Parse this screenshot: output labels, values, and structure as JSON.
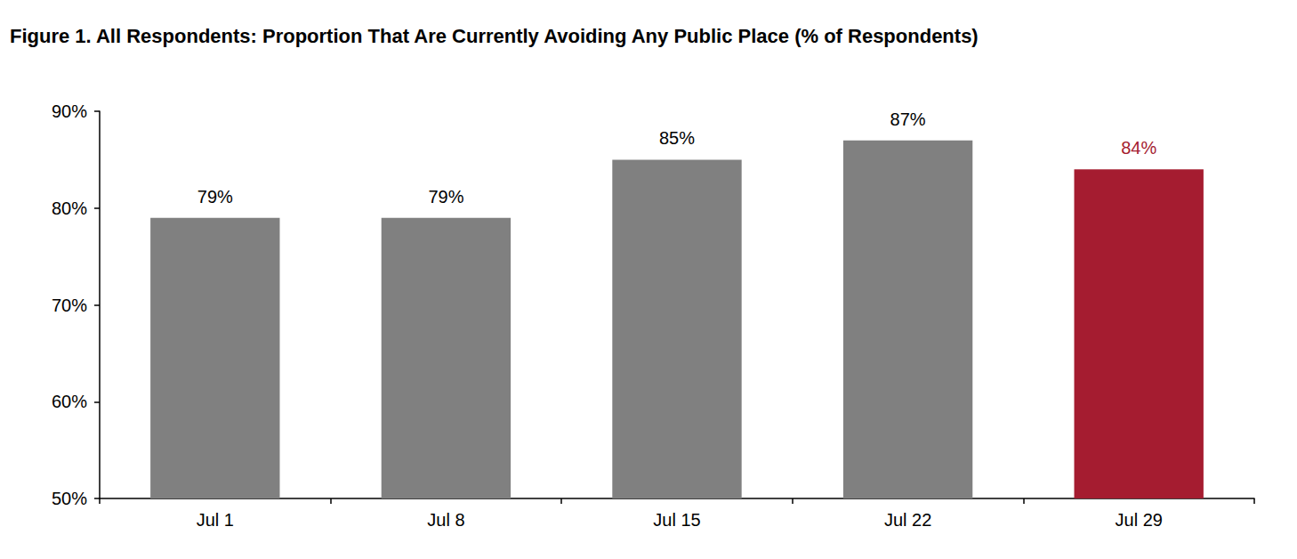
{
  "chart_data": {
    "type": "bar",
    "title": "Figure 1. All Respondents: Proportion That Are Currently Avoiding Any Public Place (% of Respondents)",
    "categories": [
      "Jul 1",
      "Jul 8",
      "Jul 15",
      "Jul 22",
      "Jul 29"
    ],
    "values": [
      79,
      79,
      85,
      87,
      84
    ],
    "value_labels": [
      "79%",
      "79%",
      "85%",
      "87%",
      "84%"
    ],
    "colors": [
      "#808080",
      "#808080",
      "#808080",
      "#808080",
      "#A51C30"
    ],
    "ylim": [
      50,
      90
    ],
    "yticks": [
      {
        "value": 50,
        "label": "50%"
      },
      {
        "value": 60,
        "label": "60%"
      },
      {
        "value": 70,
        "label": "70%"
      },
      {
        "value": 80,
        "label": "80%"
      },
      {
        "value": 90,
        "label": "90%"
      }
    ],
    "grid": false,
    "data_labels": true
  }
}
